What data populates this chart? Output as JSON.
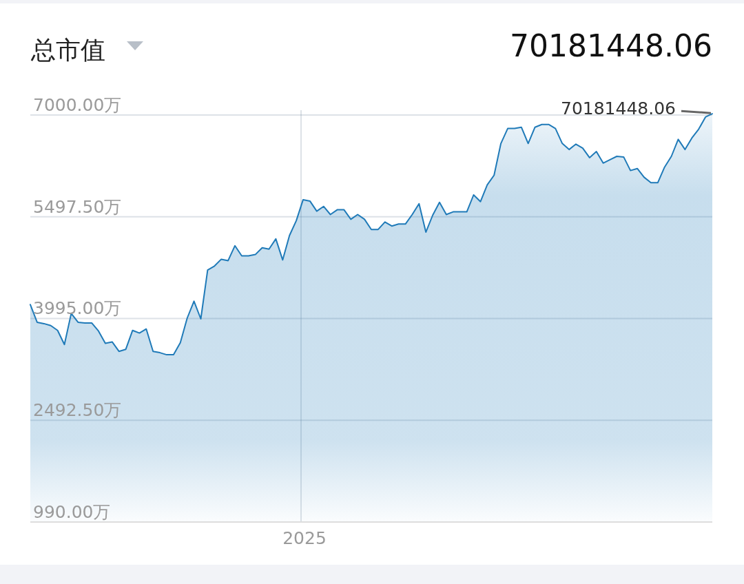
{
  "chart_data": {
    "type": "area",
    "title": "总市值",
    "subtitle": "70181448.06",
    "categories": [
      null,
      null,
      null,
      null,
      null,
      null,
      null,
      null,
      null,
      null,
      null,
      null,
      null,
      null,
      null,
      null,
      null,
      null,
      null,
      null,
      null,
      null,
      null,
      null,
      null,
      null,
      null,
      null,
      null,
      null,
      null,
      null,
      null,
      null,
      null,
      null,
      null,
      null,
      null,
      null,
      null,
      null,
      null,
      null,
      null,
      null,
      null,
      null,
      null,
      null,
      null,
      null,
      null,
      null,
      null,
      null,
      null,
      null,
      null,
      null,
      null,
      null,
      null,
      null,
      null,
      null,
      null,
      null,
      null,
      null,
      null,
      null,
      null,
      null,
      null,
      null,
      null,
      null,
      null,
      null,
      null,
      null,
      null,
      null,
      null,
      null,
      null,
      null,
      null,
      null,
      null,
      null,
      null,
      null,
      null,
      null,
      null,
      null,
      null,
      null,
      null
    ],
    "series": [
      {
        "color": "#1f7ab8",
        "values": [
          4200,
          3940,
          3920,
          3890,
          3820,
          3610,
          4070,
          3940,
          3930,
          3930,
          3810,
          3630,
          3650,
          3510,
          3540,
          3820,
          3780,
          3840,
          3510,
          3490,
          3460,
          3460,
          3640,
          4000,
          4250,
          3990,
          4710,
          4770,
          4870,
          4850,
          5070,
          4920,
          4920,
          4940,
          5040,
          5020,
          5170,
          4860,
          5220,
          5440,
          5750,
          5730,
          5580,
          5650,
          5530,
          5600,
          5600,
          5460,
          5530,
          5460,
          5310,
          5310,
          5420,
          5360,
          5390,
          5390,
          5530,
          5690,
          5270,
          5520,
          5710,
          5530,
          5570,
          5570,
          5570,
          5820,
          5720,
          5970,
          6110,
          6580,
          6800,
          6800,
          6820,
          6580,
          6820,
          6860,
          6860,
          6800,
          6580,
          6490,
          6570,
          6510,
          6370,
          6460,
          6290,
          6340,
          6390,
          6380,
          6180,
          6210,
          6080,
          6000,
          6000,
          6230,
          6390,
          6640,
          6490,
          6660,
          6790,
          6970,
          7018.14
        ]
      }
    ],
    "ylim": [
      990,
      7020
    ],
    "yticks": [
      {
        "value": 990,
        "label": "990.00万"
      },
      {
        "value": 2492.5,
        "label": "2492.50万"
      },
      {
        "value": 3995,
        "label": "3995.00万"
      },
      {
        "value": 5497.5,
        "label": "5497.50万"
      },
      {
        "value": 7000,
        "label": "7000.00万"
      }
    ],
    "grid": true,
    "annotations": [
      "2025",
      "70181448.06"
    ]
  }
}
